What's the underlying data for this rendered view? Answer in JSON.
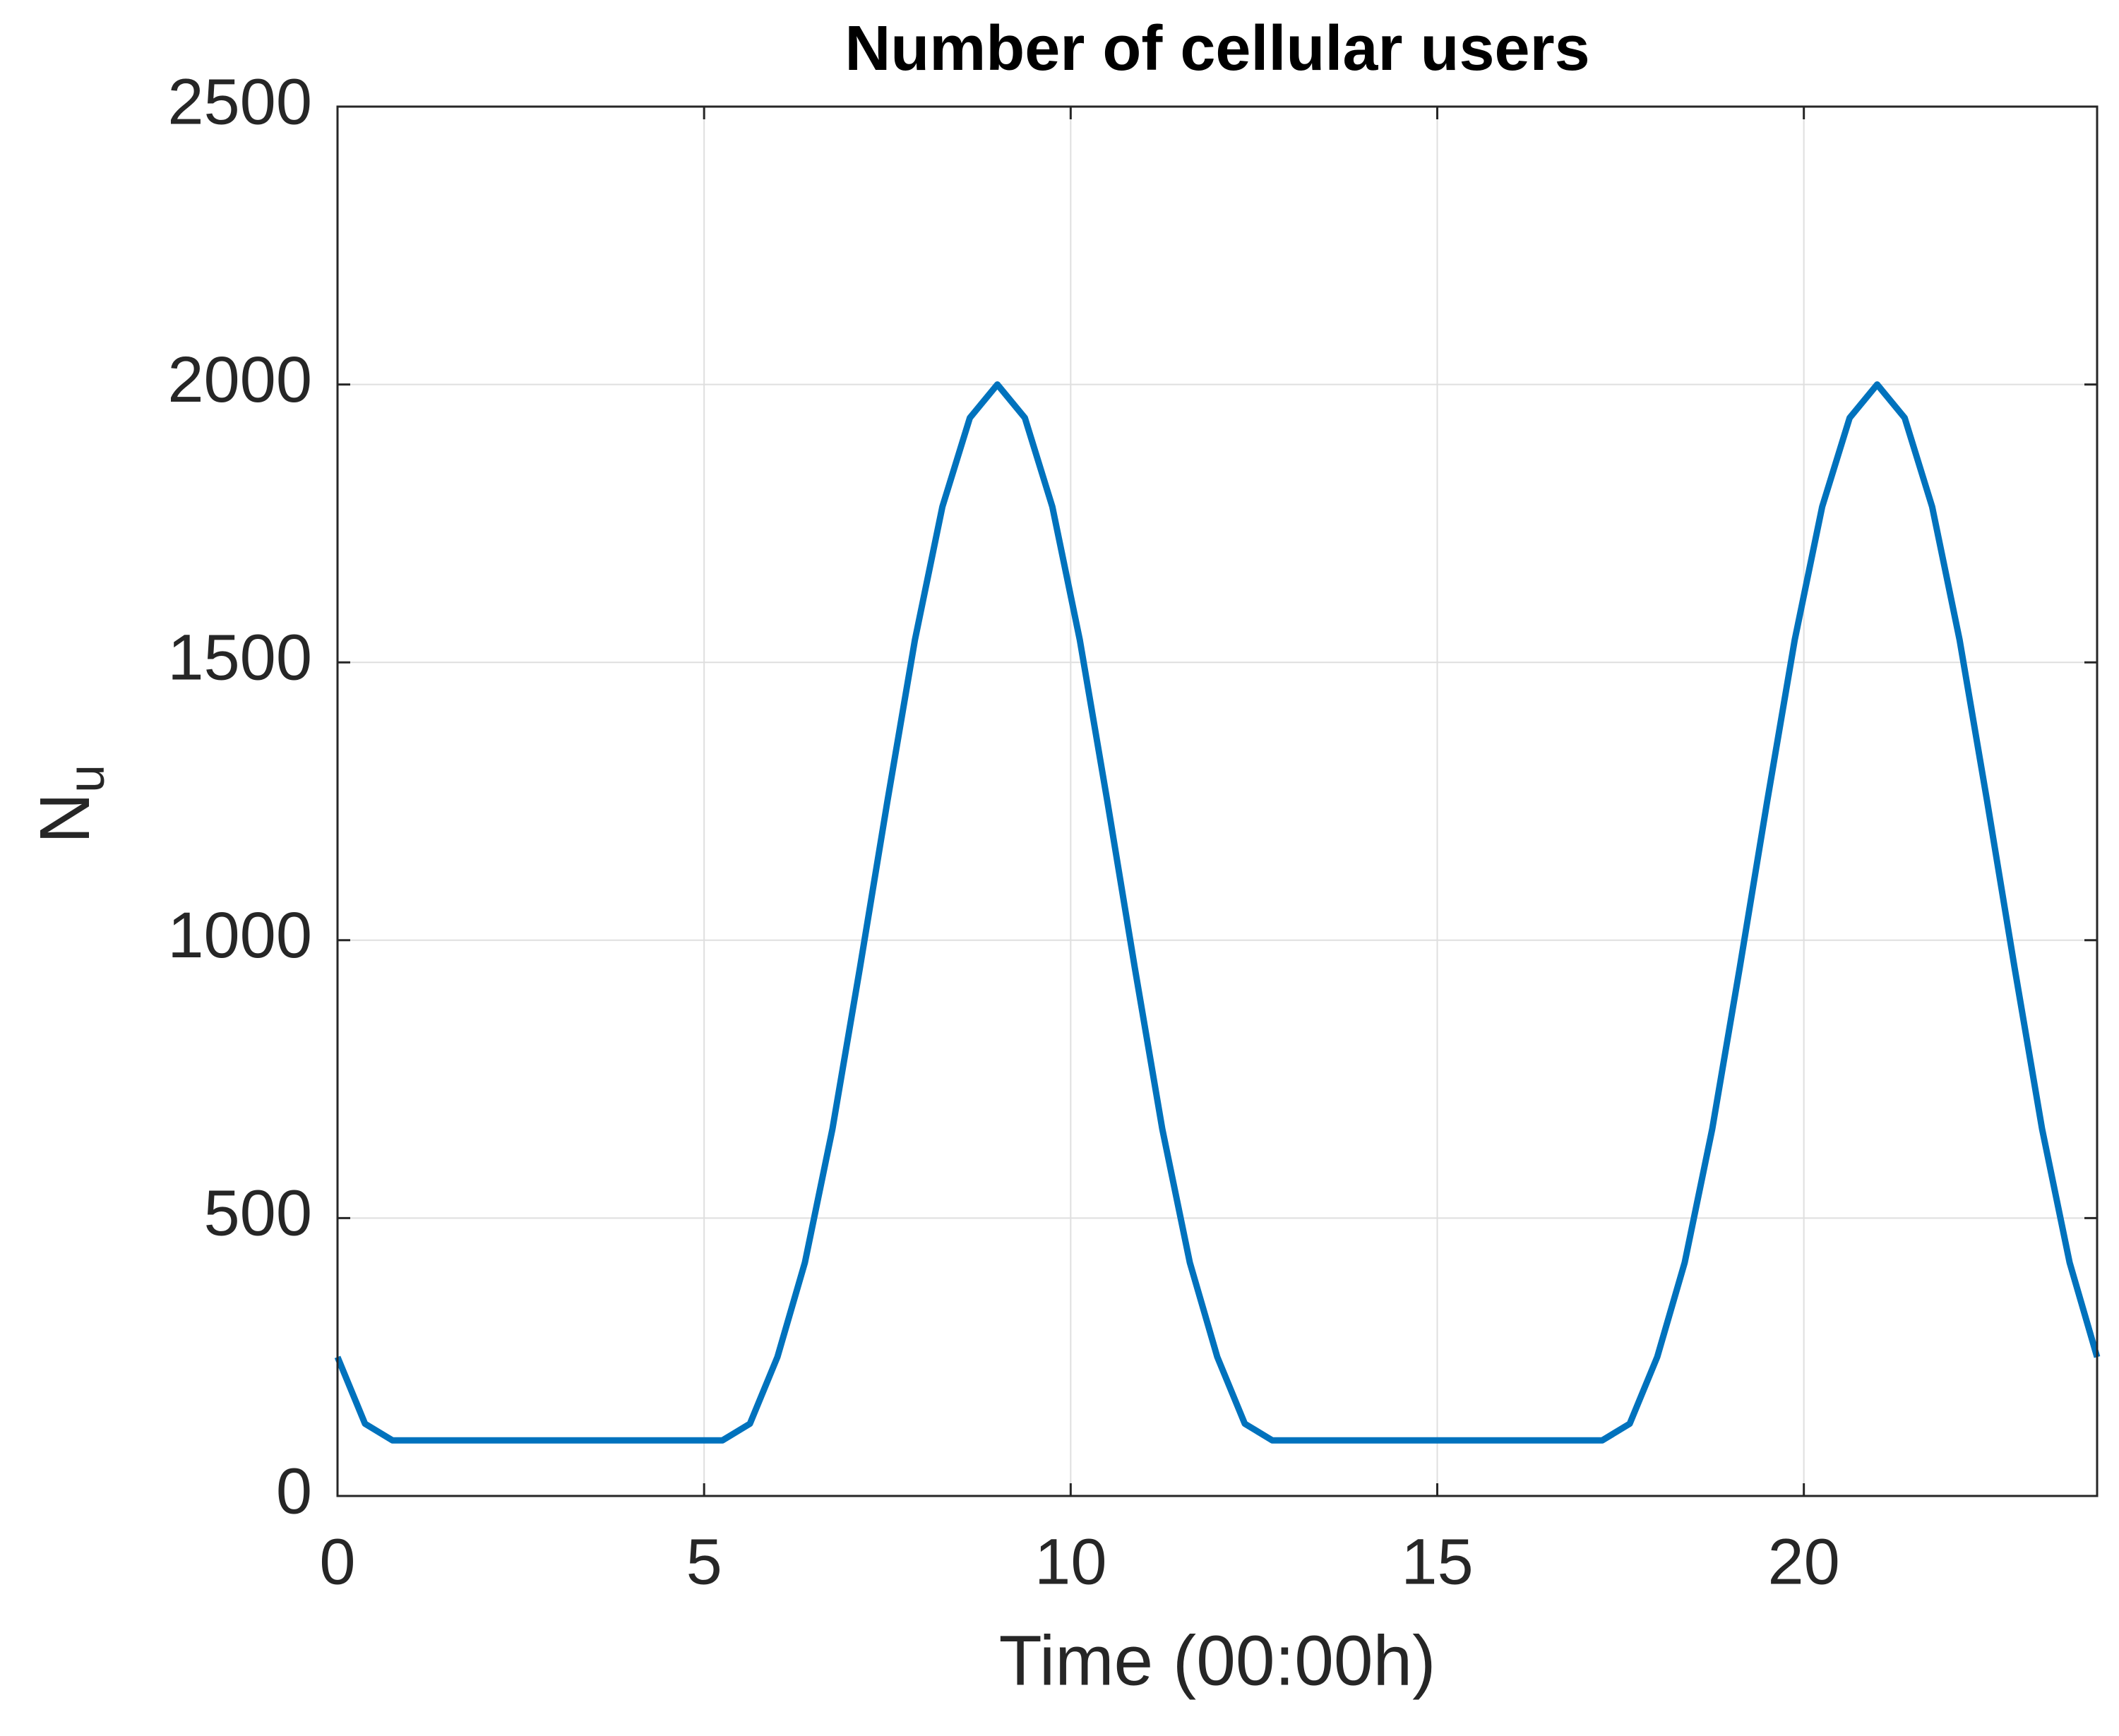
{
  "chart_data": {
    "type": "line",
    "title": "Number of cellular users",
    "xlabel": "Time (00:00h)",
    "ylabel": "N",
    "ylabel_subscript": "u",
    "x": [
      0,
      0.375,
      0.75,
      1.125,
      1.5,
      1.875,
      2.25,
      2.625,
      3,
      3.375,
      3.75,
      4.125,
      4.5,
      4.875,
      5.25,
      5.625,
      6,
      6.375,
      6.75,
      7.125,
      7.5,
      7.875,
      8.25,
      8.625,
      9,
      9.375,
      9.75,
      10.125,
      10.5,
      10.875,
      11.25,
      11.625,
      12,
      12.375,
      12.75,
      13.125,
      13.5,
      13.875,
      14.25,
      14.625,
      15,
      15.375,
      15.75,
      16.125,
      16.5,
      16.875,
      17.25,
      17.625,
      18,
      18.375,
      18.75,
      19.125,
      19.5,
      19.875,
      20.25,
      20.625,
      21,
      21.375,
      21.75,
      22.125,
      22.5,
      22.875,
      23.25,
      23.625,
      24
    ],
    "series": [
      {
        "color": "#0072bd",
        "values": [
          250,
          130,
          100,
          100,
          100,
          100,
          100,
          100,
          100,
          100,
          100,
          100,
          100,
          100,
          100,
          130,
          250,
          420,
          660,
          950,
          1250,
          1540,
          1780,
          1940,
          2000,
          1940,
          1780,
          1540,
          1250,
          950,
          660,
          420,
          250,
          130,
          100,
          100,
          100,
          100,
          100,
          100,
          100,
          100,
          100,
          100,
          100,
          100,
          100,
          130,
          250,
          420,
          660,
          950,
          1250,
          1540,
          1780,
          1940,
          2000,
          1940,
          1780,
          1540,
          1250,
          950,
          660,
          420,
          250
        ]
      }
    ],
    "xlim": [
      0,
      24
    ],
    "ylim": [
      0,
      2500
    ],
    "xticks": [
      0,
      5,
      10,
      15,
      20
    ],
    "yticks": [
      0,
      500,
      1000,
      1500,
      2000,
      2500
    ],
    "grid": true
  }
}
